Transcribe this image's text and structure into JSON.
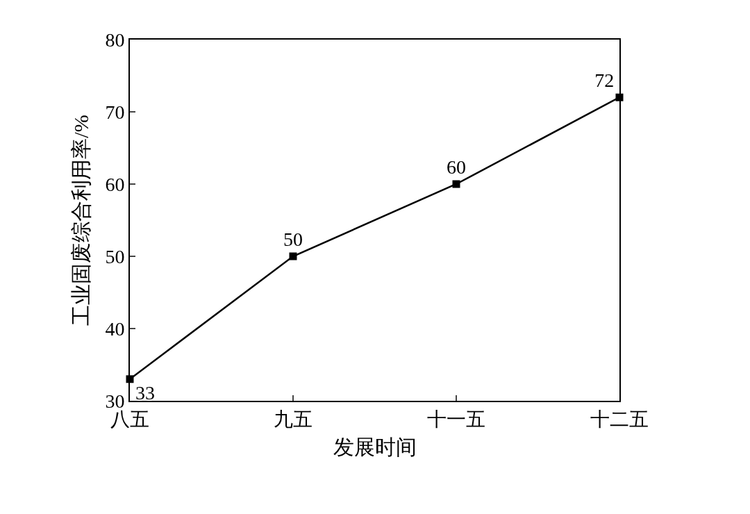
{
  "chart_data": {
    "type": "line",
    "xlabel": "发展时间",
    "ylabel": "工业固废综合利用率/%",
    "categories": [
      "八五",
      "九五",
      "十一五",
      "十二五"
    ],
    "values": [
      33,
      50,
      60,
      72
    ],
    "color": "#000000",
    "marker": "square",
    "line_style": "solid",
    "ylim": [
      30,
      80
    ],
    "yticks": [
      30,
      40,
      50,
      60,
      70,
      80
    ],
    "data_labels": true
  }
}
